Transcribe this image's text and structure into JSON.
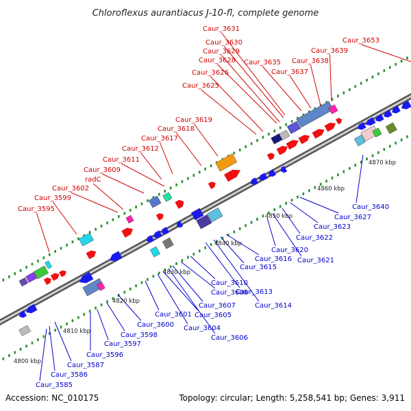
{
  "title": "Chloroflexus aurantiacus J-10-fl, complete genome",
  "accession_label": "Accession: NC_010175",
  "summary": "Topology: circular; Length: 5,258,541 bp; Genes: 3,911",
  "kbp_ticks": [
    "4800 kbp",
    "4810 kbp",
    "4820 kbp",
    "4830 kbp",
    "4840 kbp",
    "4850 kbp",
    "4860 kbp",
    "4870 kbp"
  ],
  "forward_labels": [
    "Caur_3595",
    "Caur_3599",
    "Caur_3602",
    "radC",
    "Caur_3609",
    "Caur_3611",
    "Caur_3612",
    "Caur_3617",
    "Caur_3618",
    "Caur_3619",
    "Caur_3625",
    "Caur_3626",
    "Caur_3628",
    "Caur_3629",
    "Caur_3630",
    "Caur_3631",
    "Caur_3635",
    "Caur_3637",
    "Caur_3638",
    "Caur_3639",
    "Caur_3653"
  ],
  "reverse_labels": [
    "Caur_3585",
    "Caur_3586",
    "Caur_3587",
    "Caur_3596",
    "Caur_3597",
    "Caur_3598",
    "Caur_3600",
    "Caur_3601",
    "Caur_3604",
    "Caur_3605",
    "Caur_3606",
    "Caur_3607",
    "Caur_3608",
    "Caur_3610",
    "Caur_3613",
    "Caur_3614",
    "Caur_3615",
    "Caur_3616",
    "Caur_3620",
    "Caur_3621",
    "Caur_3622",
    "Caur_3623",
    "Caur_3627",
    "Caur_3640"
  ]
}
